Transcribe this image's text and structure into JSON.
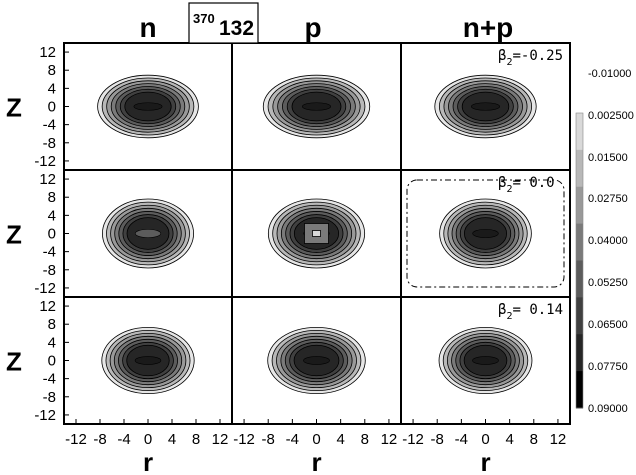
{
  "chart_data": {
    "type": "heatmap",
    "nucleus": {
      "mass_number": "370",
      "charge_number": "132"
    },
    "columns": [
      "n",
      "p",
      "n+p"
    ],
    "xlabel": "r",
    "ylabel": "Z",
    "x_ticks": [
      "-12",
      "-8",
      "-4",
      "0",
      "4",
      "8",
      "12"
    ],
    "y_ticks": [
      "12",
      "8",
      "4",
      "0",
      "-4",
      "-8",
      "-12"
    ],
    "xlim": [
      -14,
      14
    ],
    "ylim": [
      -14,
      14
    ],
    "deformation_symbol": "β",
    "deformation_subscript": "2",
    "rows": [
      {
        "beta2_label": "=-0.25",
        "beta2": -0.25
      },
      {
        "beta2_label": "= 0.0",
        "beta2": 0.0
      },
      {
        "beta2_label": "= 0.14",
        "beta2": 0.14
      }
    ],
    "colorbar": {
      "levels": [
        "-0.01000",
        "0.002500",
        "0.01500",
        "0.02750",
        "0.04000",
        "0.05250",
        "0.06500",
        "0.07750",
        "0.09000"
      ],
      "colors": [
        "#ffffff",
        "#d9d9d9",
        "#b8b8b8",
        "#999999",
        "#7a7a7a",
        "#5c5c5c",
        "#404040",
        "#262626",
        "#000000"
      ]
    },
    "contour_semi_axes_fm": {
      "comment_free": true,
      "rows": [
        {
          "r": 8.4,
          "z": 6.9,
          "rings": 7
        },
        {
          "r": 7.6,
          "z": 7.6,
          "rings": 7
        },
        {
          "r": 7.7,
          "z": 7.3,
          "rings": 7
        }
      ]
    },
    "grid": false
  }
}
